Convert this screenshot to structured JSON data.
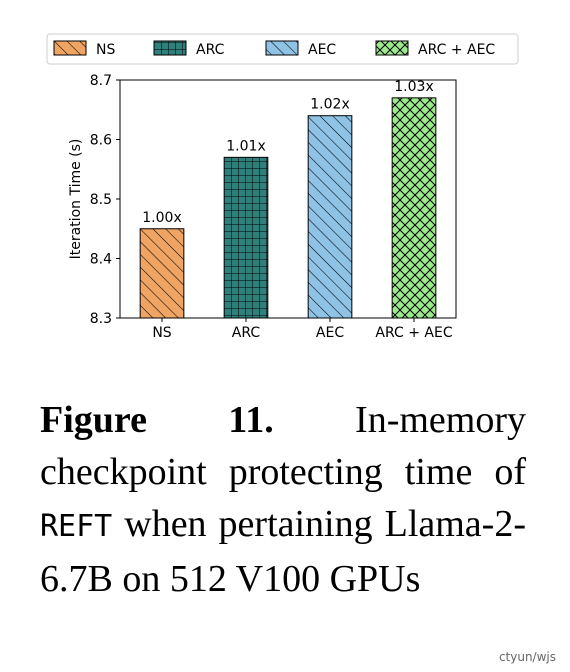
{
  "chart_data": {
    "type": "bar",
    "categories": [
      "NS",
      "ARC",
      "AEC",
      "ARC + AEC"
    ],
    "values": [
      8.45,
      8.57,
      8.64,
      8.67
    ],
    "bar_labels": [
      "1.00x",
      "1.01x",
      "1.02x",
      "1.03x"
    ],
    "title": "",
    "xlabel": "",
    "ylabel": "Iteration Time (s)",
    "ylim": [
      8.3,
      8.7
    ],
    "yticks": [
      8.3,
      8.4,
      8.5,
      8.6,
      8.7
    ],
    "ytick_labels": [
      "8.3",
      "8.4",
      "8.5",
      "8.6",
      "8.7"
    ],
    "legend": [
      "NS",
      "ARC",
      "AEC",
      "ARC + AEC"
    ],
    "legend_position": "top",
    "grid": false,
    "colors": [
      "#f0a463",
      "#2f7f7b",
      "#8fc3e6",
      "#9beb8a"
    ],
    "hatches": [
      "diagonal",
      "grid",
      "diagonal",
      "crosshatch"
    ]
  },
  "caption": {
    "label": "Figure 11.",
    "text_before": "In-memory checkpoint protecting time of",
    "code": "REFT",
    "text_after": "when pertaining Llama-2-6.7B on 512 V100 GPUs"
  },
  "watermark": "ctyun/wjs"
}
